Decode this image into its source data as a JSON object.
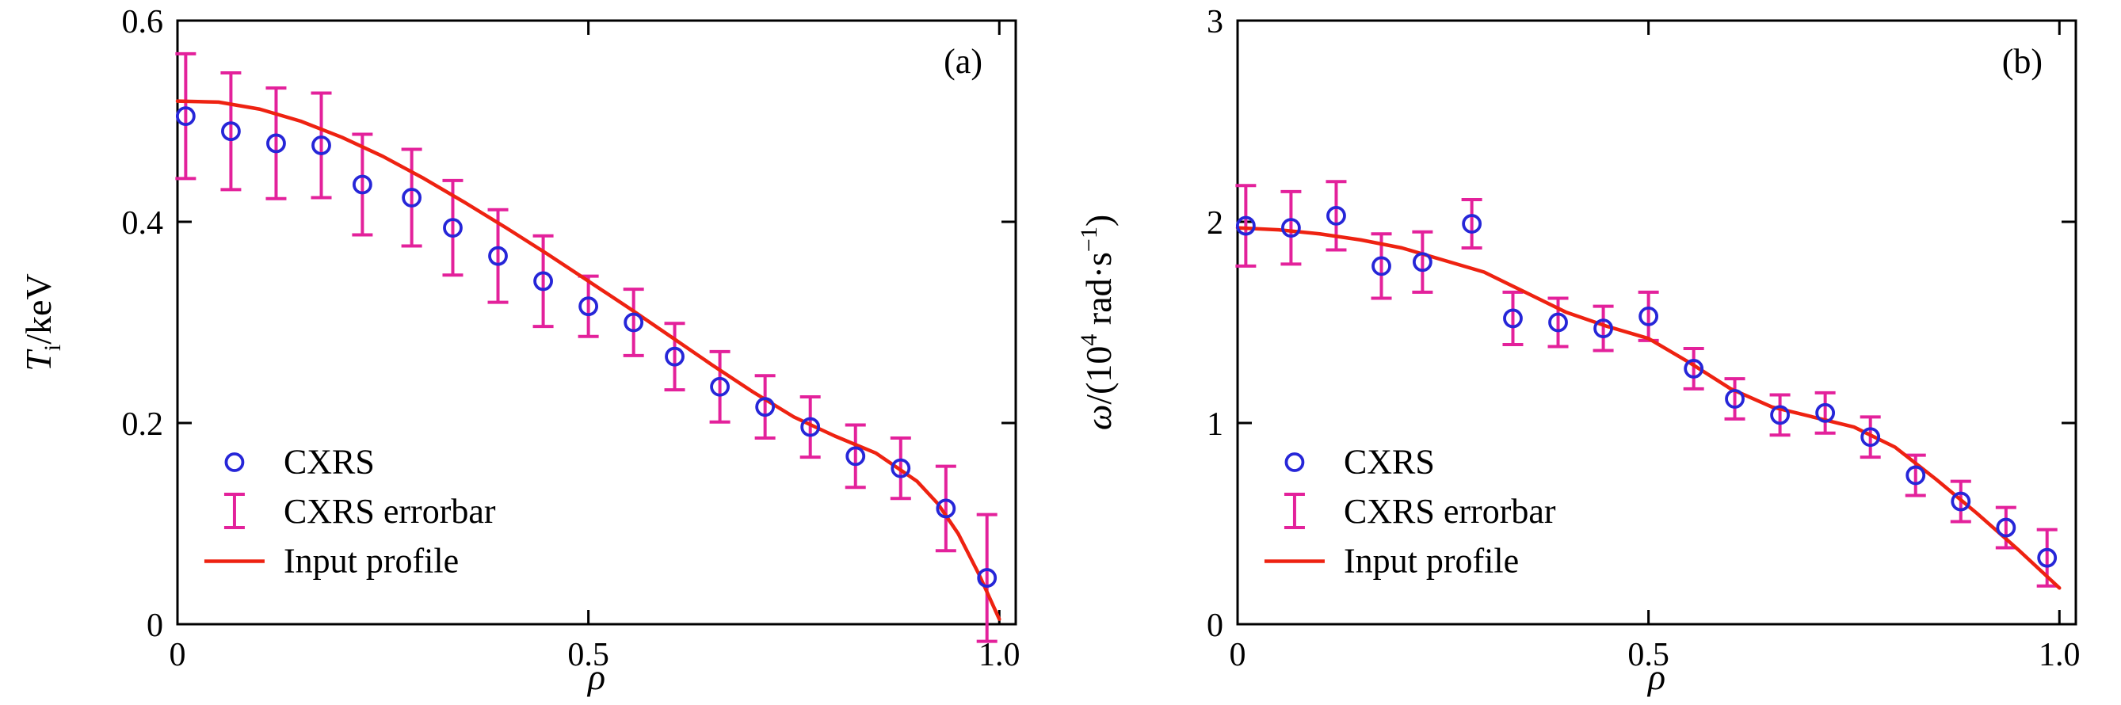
{
  "figure": {
    "background": "#ffffff",
    "panel_labels": [
      "(a)",
      "(b)"
    ]
  },
  "colors": {
    "marker": "#2626d8",
    "errorbar": "#e3219b",
    "line": "#ee2211",
    "axis": "#000000"
  },
  "chart_data": [
    {
      "type": "scatter",
      "panel_label": "(a)",
      "title": "",
      "xlabel": "ρ",
      "ylabel": "Tᵢ/keV",
      "ylabel_parts": [
        {
          "t": "T",
          "italic": true
        },
        {
          "t": "i",
          "sub": true
        },
        {
          "t": "/keV"
        }
      ],
      "xlim": [
        0,
        1.02
      ],
      "ylim": [
        0,
        0.6
      ],
      "xticks": [
        0,
        0.5,
        1.0
      ],
      "xtick_labels": [
        "0",
        "0.5",
        "1.0"
      ],
      "yticks": [
        0,
        0.2,
        0.4,
        0.6
      ],
      "ytick_labels": [
        "0",
        "0.2",
        "0.4",
        "0.6"
      ],
      "grid": false,
      "legend": {
        "position": "lower-left",
        "entries": [
          {
            "symbol": "circle",
            "label": "CXRS"
          },
          {
            "symbol": "errorbar",
            "label": "CXRS errorbar"
          },
          {
            "symbol": "line",
            "label": "Input profile"
          }
        ]
      },
      "series": [
        {
          "name": "CXRS errorbar",
          "type": "errorbar",
          "color": "#e3219b",
          "x": [
            0.01,
            0.065,
            0.12,
            0.175,
            0.225,
            0.285,
            0.335,
            0.39,
            0.445,
            0.5,
            0.555,
            0.605,
            0.66,
            0.715,
            0.77,
            0.825,
            0.88,
            0.935,
            0.985
          ],
          "y": [
            0.505,
            0.49,
            0.478,
            0.476,
            0.437,
            0.424,
            0.394,
            0.366,
            0.341,
            0.316,
            0.3,
            0.266,
            0.236,
            0.216,
            0.196,
            0.167,
            0.155,
            0.115,
            0.046
          ],
          "yerr": [
            0.062,
            0.058,
            0.055,
            0.052,
            0.05,
            0.048,
            0.047,
            0.046,
            0.045,
            0.03,
            0.033,
            0.033,
            0.035,
            0.031,
            0.03,
            0.031,
            0.03,
            0.042,
            0.063
          ]
        },
        {
          "name": "Input profile",
          "type": "line",
          "color": "#ee2211",
          "x": [
            0,
            0.05,
            0.1,
            0.15,
            0.2,
            0.25,
            0.3,
            0.35,
            0.4,
            0.45,
            0.5,
            0.55,
            0.6,
            0.65,
            0.7,
            0.75,
            0.8,
            0.85,
            0.9,
            0.925,
            0.95,
            0.975,
            1.0
          ],
          "y": [
            0.52,
            0.519,
            0.512,
            0.5,
            0.484,
            0.465,
            0.443,
            0.419,
            0.394,
            0.368,
            0.341,
            0.314,
            0.286,
            0.258,
            0.231,
            0.206,
            0.187,
            0.17,
            0.142,
            0.12,
            0.09,
            0.05,
            0.005
          ]
        },
        {
          "name": "CXRS",
          "type": "scatter",
          "marker": "circle",
          "color": "#2626d8",
          "x": [
            0.01,
            0.065,
            0.12,
            0.175,
            0.225,
            0.285,
            0.335,
            0.39,
            0.445,
            0.5,
            0.555,
            0.605,
            0.66,
            0.715,
            0.77,
            0.825,
            0.88,
            0.935,
            0.985
          ],
          "y": [
            0.505,
            0.49,
            0.478,
            0.476,
            0.437,
            0.424,
            0.394,
            0.366,
            0.341,
            0.316,
            0.3,
            0.266,
            0.236,
            0.216,
            0.196,
            0.167,
            0.155,
            0.115,
            0.046
          ]
        }
      ]
    },
    {
      "type": "scatter",
      "panel_label": "(b)",
      "title": "",
      "xlabel": "ρ",
      "ylabel": "ω/(10⁴ rad·s⁻¹)",
      "ylabel_parts": [
        {
          "t": "ω",
          "italic": true
        },
        {
          "t": "/(10"
        },
        {
          "t": "4",
          "sup": true
        },
        {
          "t": " rad·s"
        },
        {
          "t": "−1",
          "sup": true
        },
        {
          "t": ")"
        }
      ],
      "xlim": [
        0,
        1.02
      ],
      "ylim": [
        0,
        3
      ],
      "xticks": [
        0,
        0.5,
        1.0
      ],
      "xtick_labels": [
        "0",
        "0.5",
        "1.0"
      ],
      "yticks": [
        0,
        1,
        2,
        3
      ],
      "ytick_labels": [
        "0",
        "1",
        "2",
        "3"
      ],
      "grid": false,
      "legend": {
        "position": "lower-left",
        "entries": [
          {
            "symbol": "circle",
            "label": "CXRS"
          },
          {
            "symbol": "errorbar",
            "label": "CXRS errorbar"
          },
          {
            "symbol": "line",
            "label": "Input profile"
          }
        ]
      },
      "series": [
        {
          "name": "CXRS errorbar",
          "type": "errorbar",
          "color": "#e3219b",
          "x": [
            0.01,
            0.065,
            0.12,
            0.175,
            0.225,
            0.285,
            0.335,
            0.39,
            0.445,
            0.5,
            0.555,
            0.605,
            0.66,
            0.715,
            0.77,
            0.825,
            0.88,
            0.935,
            0.985
          ],
          "y": [
            1.98,
            1.97,
            2.03,
            1.78,
            1.8,
            1.99,
            1.52,
            1.5,
            1.47,
            1.53,
            1.27,
            1.12,
            1.04,
            1.05,
            0.93,
            0.74,
            0.61,
            0.48,
            0.33
          ],
          "yerr": [
            0.2,
            0.18,
            0.17,
            0.16,
            0.15,
            0.12,
            0.13,
            0.12,
            0.11,
            0.12,
            0.1,
            0.1,
            0.1,
            0.1,
            0.1,
            0.1,
            0.1,
            0.1,
            0.14
          ]
        },
        {
          "name": "Input profile",
          "type": "line",
          "color": "#ee2211",
          "x": [
            0,
            0.05,
            0.1,
            0.15,
            0.2,
            0.25,
            0.3,
            0.35,
            0.4,
            0.45,
            0.5,
            0.55,
            0.6,
            0.65,
            0.7,
            0.75,
            0.8,
            0.85,
            0.9,
            0.95,
            1.0
          ],
          "y": [
            1.97,
            1.96,
            1.94,
            1.91,
            1.87,
            1.81,
            1.75,
            1.65,
            1.55,
            1.48,
            1.42,
            1.3,
            1.17,
            1.08,
            1.03,
            0.98,
            0.88,
            0.72,
            0.55,
            0.37,
            0.18
          ]
        },
        {
          "name": "CXRS",
          "type": "scatter",
          "marker": "circle",
          "color": "#2626d8",
          "x": [
            0.01,
            0.065,
            0.12,
            0.175,
            0.225,
            0.285,
            0.335,
            0.39,
            0.445,
            0.5,
            0.555,
            0.605,
            0.66,
            0.715,
            0.77,
            0.825,
            0.88,
            0.935,
            0.985
          ],
          "y": [
            1.98,
            1.97,
            2.03,
            1.78,
            1.8,
            1.99,
            1.52,
            1.5,
            1.47,
            1.53,
            1.27,
            1.12,
            1.04,
            1.05,
            0.93,
            0.74,
            0.61,
            0.48,
            0.33
          ]
        }
      ]
    }
  ]
}
